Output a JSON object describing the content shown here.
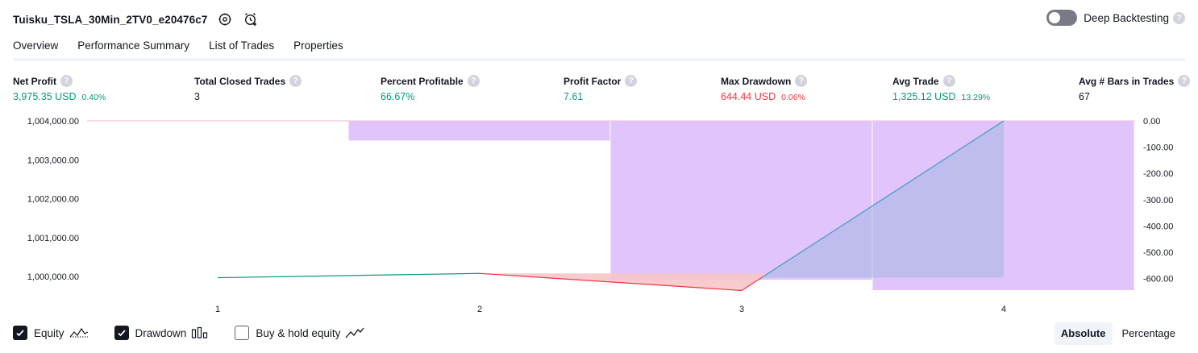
{
  "header": {
    "strategy_name": "Tuisku_TSLA_30Min_2TV0_e20476c7",
    "deep_backtesting_label": "Deep Backtesting",
    "help_glyph": "?"
  },
  "tabs": [
    {
      "label": "Overview",
      "active": true
    },
    {
      "label": "Performance Summary",
      "active": false
    },
    {
      "label": "List of Trades",
      "active": false
    },
    {
      "label": "Properties",
      "active": false
    }
  ],
  "metrics": [
    {
      "label": "Net Profit",
      "value": "3,975.35 USD",
      "sub": "0.40%",
      "color": "green"
    },
    {
      "label": "Total Closed Trades",
      "value": "3",
      "sub": "",
      "color": "dark"
    },
    {
      "label": "Percent Profitable",
      "value": "66.67%",
      "sub": "",
      "color": "green"
    },
    {
      "label": "Profit Factor",
      "value": "7.61",
      "sub": "",
      "color": "green"
    },
    {
      "label": "Max Drawdown",
      "value": "644.44 USD",
      "sub": "0.06%",
      "color": "red"
    },
    {
      "label": "Avg Trade",
      "value": "1,325.12 USD",
      "sub": "13.29%",
      "color": "green"
    },
    {
      "label": "Avg # Bars in Trades",
      "value": "67",
      "sub": "",
      "color": "dark"
    }
  ],
  "chart_data": {
    "type": "line",
    "x_tick_labels": [
      "1",
      "2",
      "3",
      "4"
    ],
    "left_axis": {
      "tick_labels": [
        "1,004,000.00",
        "1,003,000.00",
        "1,002,000.00",
        "1,001,000.00",
        "1,000,000.00"
      ],
      "ticks": [
        1004000,
        1003000,
        1002000,
        1001000,
        1000000
      ],
      "range": [
        999650,
        1004000
      ]
    },
    "right_axis": {
      "tick_labels": [
        "0.00",
        "-100.00",
        "-200.00",
        "-300.00",
        "-400.00",
        "-500.00",
        "-600.00"
      ],
      "ticks": [
        0,
        -100,
        -200,
        -300,
        -400,
        -500,
        -600
      ],
      "range": [
        -644.44,
        0
      ]
    },
    "equity_series": {
      "name": "Equity",
      "x": [
        1,
        2,
        3,
        4
      ],
      "values": [
        999970,
        1000080,
        999640,
        1004000
      ]
    },
    "drawdown_series": {
      "name": "Drawdown",
      "bars": [
        {
          "x_from": 1.5,
          "x_to": 2.5,
          "value": -75
        },
        {
          "x_from": 2.5,
          "x_to": 3.5,
          "value": -605
        },
        {
          "x_from": 3.5,
          "x_to": 4.5,
          "value": -644.44
        }
      ],
      "overlay": {
        "x_from": 3.5,
        "x_to": 4.0,
        "value": -570
      }
    },
    "colors": {
      "equity_up": "#089981",
      "equity_down": "#f23645",
      "equity_fill_down": "#f7c5c9",
      "equity_fill_up": "#a4b7e3",
      "drawdown_fill": "#e1c4fb",
      "baseline": "#f4b8c9"
    }
  },
  "legend": [
    {
      "label": "Equity",
      "checked": true,
      "icon": "equity-line-icon"
    },
    {
      "label": "Drawdown",
      "checked": true,
      "icon": "drawdown-bars-icon"
    },
    {
      "label": "Buy & hold equity",
      "checked": false,
      "icon": "buy-hold-line-icon"
    }
  ],
  "modes": [
    {
      "label": "Absolute",
      "active": true
    },
    {
      "label": "Percentage",
      "active": false
    }
  ]
}
